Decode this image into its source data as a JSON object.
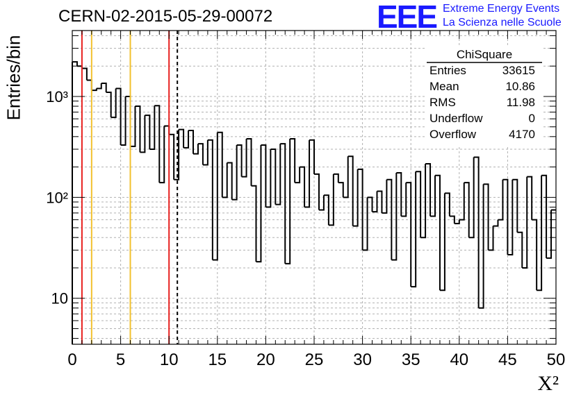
{
  "chart_data": {
    "type": "histogram",
    "title": "CERN-02-2015-05-29-00072",
    "xlabel": "X²",
    "ylabel": "Entries/bin",
    "xlim": [
      0,
      50
    ],
    "ylim": [
      3.5,
      4500
    ],
    "y_scale": "log",
    "grid": true,
    "bin_width": 0.5,
    "x_ticks": [
      "0",
      "5",
      "10",
      "15",
      "20",
      "25",
      "30",
      "35",
      "40",
      "45",
      "50"
    ],
    "y_ticks": [
      {
        "value": 10,
        "label": "10"
      },
      {
        "value": 100,
        "label": "10²"
      },
      {
        "value": 1000,
        "label": "10³"
      }
    ],
    "bin_values": [
      2200,
      2000,
      1900,
      1450,
      1150,
      1200,
      1350,
      1100,
      620,
      1200,
      330,
      1000,
      320,
      800,
      280,
      650,
      300,
      810,
      140,
      510,
      420,
      150,
      470,
      310,
      460,
      270,
      340,
      210,
      370,
      24,
      440,
      100,
      220,
      95,
      330,
      160,
      380,
      130,
      23,
      330,
      80,
      300,
      85,
      340,
      22,
      380,
      140,
      200,
      80,
      370,
      170,
      75,
      105,
      53,
      170,
      140,
      100,
      255,
      52,
      190,
      30,
      100,
      72,
      115,
      70,
      150,
      24,
      175,
      65,
      140,
      13,
      180,
      40,
      215,
      65,
      165,
      12,
      110,
      65,
      55,
      60,
      140,
      40,
      250,
      8,
      135,
      30,
      52,
      60,
      150,
      27,
      150,
      45,
      20,
      160,
      60,
      12,
      165,
      25,
      75
    ],
    "vertical_lines": [
      {
        "x": 1,
        "color": "#e8211f",
        "style": "solid"
      },
      {
        "x": 2,
        "color": "#f2c12e",
        "style": "solid"
      },
      {
        "x": 6,
        "color": "#f2c12e",
        "style": "solid"
      },
      {
        "x": 10,
        "color": "#e8211f",
        "style": "solid"
      },
      {
        "x": 10.86,
        "color": "#000000",
        "style": "dashed"
      }
    ],
    "stats_box": {
      "title": "ChiSquare",
      "rows": [
        {
          "label": "Entries",
          "value": "33615"
        },
        {
          "label": "Mean",
          "value": "10.86"
        },
        {
          "label": "RMS",
          "value": "11.98"
        },
        {
          "label": "Underflow",
          "value": "0"
        },
        {
          "label": "Overflow",
          "value": "4170"
        }
      ]
    }
  },
  "logo": {
    "mark": "EEE",
    "line1": "Extreme Energy Events",
    "line2": "La Scienza nelle Scuole"
  },
  "colors": {
    "red_line": "#e8211f",
    "yellow_line": "#f2c12e",
    "logo_blue": "#1a1aff",
    "grid": "#b0b0b0"
  }
}
